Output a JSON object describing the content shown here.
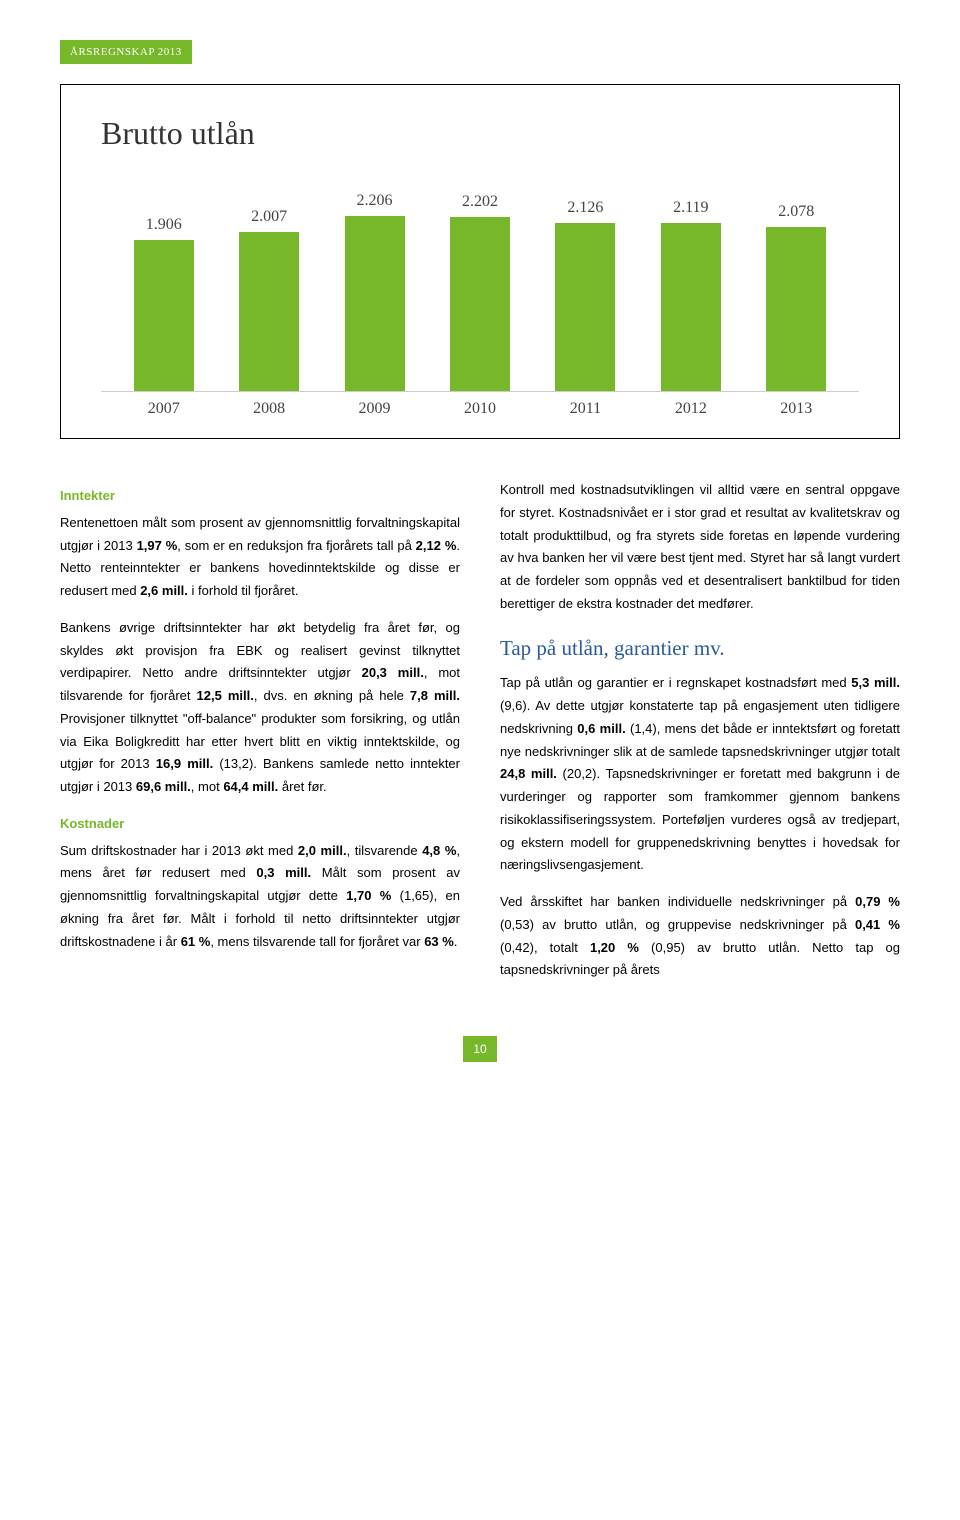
{
  "badge": "ÅRSREGNSKAP 2013",
  "chart": {
    "title": "Brutto utlån",
    "background_color": "#ffffff",
    "bar_color": "#76b82a",
    "categories": [
      "2007",
      "2008",
      "2009",
      "2010",
      "2011",
      "2012",
      "2013"
    ],
    "labels": [
      "1.906",
      "2.007",
      "2.206",
      "2.202",
      "2.126",
      "2.119",
      "2.078"
    ],
    "values": [
      1906,
      2007,
      2206,
      2202,
      2126,
      2119,
      2078
    ],
    "max_scale": 2400,
    "title_fontsize": 32,
    "label_fontsize": 16
  },
  "left": {
    "h1": "Inntekter",
    "p1a": "Rentenettoen målt som prosent av gjennomsnittlig forvaltningskapital utgjør i 2013 ",
    "p1b": "1,97 %",
    "p1c": ", som er en reduksjon fra fjorårets tall på ",
    "p1d": "2,12 %",
    "p1e": ". Netto renteinntekter er bankens hovedinntektskilde og disse er redusert med ",
    "p1f": "2,6 mill.",
    "p1g": " i forhold til fjoråret.",
    "p2a": "Bankens øvrige driftsinntekter har økt betydelig fra året før, og skyldes økt provisjon fra EBK og realisert gevinst tilknyttet verdipapirer. Netto andre driftsinntekter utgjør ",
    "p2b": "20,3 mill.",
    "p2c": ", mot tilsvarende for fjoråret ",
    "p2d": "12,5 mill.",
    "p2e": ", dvs. en økning på hele ",
    "p2f": "7,8 mill.",
    "p2g": " Provisjoner tilknyttet \"off-balance\" produkter som forsikring, og utlån via Eika Boligkreditt har etter hvert blitt en viktig inntektskilde, og utgjør for 2013 ",
    "p2h": "16,9 mill.",
    "p2i": " (13,2). Bankens samlede netto inntekter utgjør i 2013 ",
    "p2j": "69,6 mill.",
    "p2k": ", mot ",
    "p2l": "64,4 mill.",
    "p2m": " året før.",
    "h2": "Kostnader",
    "p3a": "Sum driftskostnader har i 2013 økt med ",
    "p3b": "2,0 mill.",
    "p3c": ", tilsvarende ",
    "p3d": "4,8 %",
    "p3e": ", mens året før redusert med ",
    "p3f": "0,3 mill.",
    "p3g": " Målt som prosent av gjennomsnittlig forvaltningskapital utgjør dette ",
    "p3h": "1,70 %",
    "p3i": " (1,65), en økning fra året før. Målt i forhold til netto driftsinntekter utgjør driftskostnadene i år ",
    "p3j": "61 %",
    "p3k": ", mens tilsvarende tall for fjoråret var ",
    "p3l": "63 %",
    "p3m": "."
  },
  "right": {
    "p1": "Kontroll med kostnadsutviklingen vil alltid være en sentral oppgave for styret. Kostnadsnivået er i stor grad et resultat av kvalitetskrav og totalt produkttilbud, og fra styrets side foretas en løpende vurdering av hva banken her vil være best tjent med. Styret har så langt vurdert at de fordeler som oppnås ved et desentralisert banktilbud for tiden berettiger de ekstra kostnader det medfører.",
    "h1": "Tap på utlån, garantier mv.",
    "p2a": "Tap på utlån og garantier er i regnskapet kostnadsført med ",
    "p2b": "5,3 mill.",
    "p2c": " (9,6). Av dette utgjør konstaterte tap på engasjement uten tidligere nedskrivning ",
    "p2d": "0,6 mill.",
    "p2e": " (1,4), mens det både er inntektsført og foretatt nye nedskrivninger slik at de samlede tapsnedskrivninger utgjør totalt ",
    "p2f": "24,8 mill.",
    "p2g": " (20,2). Tapsnedskrivninger er foretatt med bakgrunn i de vurderinger og rapporter som framkommer gjennom bankens risikoklassifiseringssystem. Porteføljen vurderes også av tredjepart, og ekstern modell for gruppenedskrivning benyttes i hovedsak for næringslivsengasjement.",
    "p3a": "Ved årsskiftet har banken individuelle nedskrivninger på ",
    "p3b": "0,79 %",
    "p3c": " (0,53) av brutto utlån, og gruppevise nedskrivninger på ",
    "p3d": "0,41 %",
    "p3e": " (0,42), totalt ",
    "p3f": "1,20 %",
    "p3g": " (0,95) av brutto utlån. Netto tap og tapsnedskrivninger på årets"
  },
  "page_number": "10"
}
